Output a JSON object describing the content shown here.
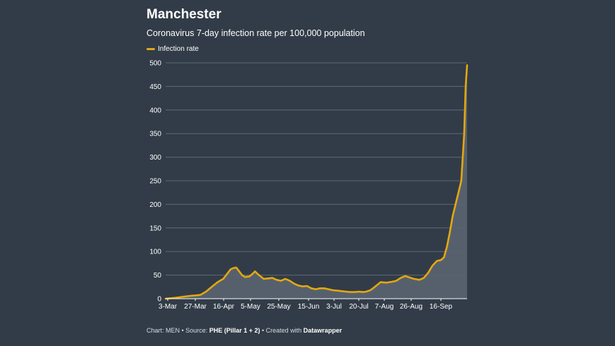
{
  "chart_data": {
    "type": "area",
    "title": "Manchester",
    "subtitle": "Coronavirus 7-day infection rate per 100,000 population",
    "legend": {
      "position": "top-left",
      "entries": [
        "Infection rate"
      ]
    },
    "xlabel": "",
    "ylabel": "",
    "x_ticks": [
      "3-Mar",
      "27-Mar",
      "16-Apr",
      "5-May",
      "25-May",
      "15-Jun",
      "3-Jul",
      "20-Jul",
      "7-Aug",
      "26-Aug",
      "16-Sep"
    ],
    "y_ticks": [
      0,
      50,
      100,
      150,
      200,
      250,
      300,
      350,
      400,
      450,
      500
    ],
    "ylim": [
      0,
      500
    ],
    "xlim": [
      "2020-03-03",
      "2020-09-28"
    ],
    "grid": true,
    "series": [
      {
        "name": "Infection rate",
        "color": "#e3a811",
        "points": [
          [
            "2020-03-03",
            0
          ],
          [
            "2020-03-10",
            2
          ],
          [
            "2020-03-15",
            4
          ],
          [
            "2020-03-20",
            6
          ],
          [
            "2020-03-24",
            7
          ],
          [
            "2020-03-27",
            8
          ],
          [
            "2020-03-31",
            15
          ],
          [
            "2020-04-04",
            25
          ],
          [
            "2020-04-08",
            35
          ],
          [
            "2020-04-12",
            42
          ],
          [
            "2020-04-14",
            50
          ],
          [
            "2020-04-17",
            62
          ],
          [
            "2020-04-19",
            65
          ],
          [
            "2020-04-21",
            66
          ],
          [
            "2020-04-23",
            58
          ],
          [
            "2020-04-25",
            50
          ],
          [
            "2020-04-27",
            46
          ],
          [
            "2020-04-30",
            47
          ],
          [
            "2020-05-02",
            52
          ],
          [
            "2020-05-04",
            58
          ],
          [
            "2020-05-06",
            52
          ],
          [
            "2020-05-08",
            47
          ],
          [
            "2020-05-10",
            42
          ],
          [
            "2020-05-13",
            43
          ],
          [
            "2020-05-16",
            44
          ],
          [
            "2020-05-19",
            40
          ],
          [
            "2020-05-22",
            38
          ],
          [
            "2020-05-25",
            42
          ],
          [
            "2020-05-28",
            38
          ],
          [
            "2020-05-31",
            32
          ],
          [
            "2020-06-03",
            28
          ],
          [
            "2020-06-06",
            26
          ],
          [
            "2020-06-09",
            27
          ],
          [
            "2020-06-12",
            22
          ],
          [
            "2020-06-15",
            20
          ],
          [
            "2020-06-18",
            22
          ],
          [
            "2020-06-21",
            22
          ],
          [
            "2020-06-24",
            20
          ],
          [
            "2020-06-27",
            18
          ],
          [
            "2020-06-30",
            17
          ],
          [
            "2020-07-03",
            16
          ],
          [
            "2020-07-06",
            15
          ],
          [
            "2020-07-09",
            14
          ],
          [
            "2020-07-12",
            14
          ],
          [
            "2020-07-15",
            15
          ],
          [
            "2020-07-18",
            14
          ],
          [
            "2020-07-20",
            15
          ],
          [
            "2020-07-23",
            18
          ],
          [
            "2020-07-26",
            25
          ],
          [
            "2020-07-30",
            35
          ],
          [
            "2020-08-03",
            34
          ],
          [
            "2020-08-07",
            36
          ],
          [
            "2020-08-10",
            38
          ],
          [
            "2020-08-13",
            44
          ],
          [
            "2020-08-16",
            48
          ],
          [
            "2020-08-19",
            45
          ],
          [
            "2020-08-22",
            42
          ],
          [
            "2020-08-26",
            40
          ],
          [
            "2020-08-29",
            44
          ],
          [
            "2020-09-01",
            55
          ],
          [
            "2020-09-04",
            70
          ],
          [
            "2020-09-07",
            80
          ],
          [
            "2020-09-10",
            82
          ],
          [
            "2020-09-12",
            88
          ],
          [
            "2020-09-14",
            110
          ],
          [
            "2020-09-16",
            140
          ],
          [
            "2020-09-18",
            175
          ],
          [
            "2020-09-20",
            200
          ],
          [
            "2020-09-22",
            225
          ],
          [
            "2020-09-24",
            250
          ],
          [
            "2020-09-26",
            350
          ],
          [
            "2020-09-27",
            450
          ],
          [
            "2020-09-28",
            495
          ]
        ]
      }
    ]
  },
  "footer": {
    "prefix": "Chart: MEN • Source: ",
    "source": "PHE (Pillar 1 + 2)",
    "middle": " • Created with ",
    "tool": "Datawrapper"
  }
}
